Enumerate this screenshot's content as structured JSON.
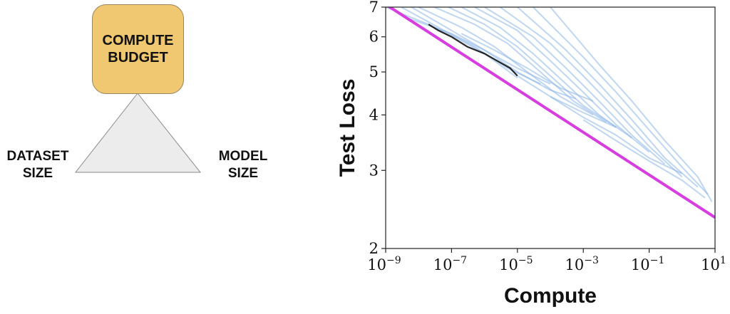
{
  "diagram": {
    "center_label": "COMPUTE\nBUDGET",
    "left_label": "DATASET\nSIZE",
    "right_label": "MODEL\nSIZE",
    "box_color": "#f0c871",
    "triangle_color": "#ececec"
  },
  "chart_data": {
    "type": "line",
    "title": "",
    "xlabel": "Compute",
    "ylabel": "Test Loss",
    "x_scale": "log",
    "y_scale": "log",
    "xlim": [
      1e-09,
      10
    ],
    "ylim": [
      2,
      7
    ],
    "x_ticks": [
      {
        "value": 1e-09,
        "base": "10",
        "exp": "−9"
      },
      {
        "value": 1e-07,
        "base": "10",
        "exp": "−7"
      },
      {
        "value": 1e-05,
        "base": "10",
        "exp": "−5"
      },
      {
        "value": 0.001,
        "base": "10",
        "exp": "−3"
      },
      {
        "value": 0.1,
        "base": "10",
        "exp": "−1"
      },
      {
        "value": 10,
        "base": "10",
        "exp": "1"
      }
    ],
    "y_ticks": [
      {
        "value": 2,
        "label": "2"
      },
      {
        "value": 3,
        "label": "3"
      },
      {
        "value": 4,
        "label": "4"
      },
      {
        "value": 5,
        "label": "5"
      },
      {
        "value": 6,
        "label": "6"
      },
      {
        "value": 7,
        "label": "7"
      }
    ],
    "grid": false,
    "legend": "none",
    "series": [
      {
        "role": "frontier-fit",
        "color": "#d63ee0",
        "x": [
          1e-09,
          10
        ],
        "y": [
          7.1,
          2.35
        ]
      },
      {
        "role": "best-run-envelope",
        "color": "#111111",
        "x": [
          2e-08,
          4e-08,
          1e-07,
          3e-07,
          1e-06,
          3e-06,
          6e-06,
          1e-05
        ],
        "y": [
          6.4,
          6.2,
          6.0,
          5.7,
          5.5,
          5.25,
          5.1,
          4.9
        ]
      },
      {
        "role": "training-runs",
        "color": "#8ab4e6",
        "lines": [
          {
            "x": [
              1e-09,
              2e-08,
              1e-07,
              1e-06,
              1e-05
            ],
            "y": [
              7.0,
              6.4,
              6.05,
              5.5,
              4.85
            ]
          },
          {
            "x": [
              3e-09,
              4e-08,
              5e-07,
              5e-06,
              5e-05
            ],
            "y": [
              7.0,
              6.3,
              5.7,
              5.1,
              4.7
            ]
          },
          {
            "x": [
              6e-09,
              1e-07,
              1e-06,
              1e-05,
              0.0001,
              0.0006
            ],
            "y": [
              7.0,
              6.2,
              5.6,
              5.0,
              4.55,
              4.35
            ]
          },
          {
            "x": [
              1e-08,
              2e-07,
              2e-06,
              2e-05,
              0.0002,
              0.002
            ],
            "y": [
              7.0,
              6.3,
              5.7,
              5.0,
              4.4,
              4.0
            ]
          },
          {
            "x": [
              3e-08,
              5e-07,
              5e-06,
              5e-05,
              0.0005,
              0.005
            ],
            "y": [
              7.0,
              6.4,
              5.8,
              5.0,
              4.3,
              3.85
            ]
          },
          {
            "x": [
              8e-08,
              1e-06,
              1e-05,
              0.0001,
              0.001,
              0.01
            ],
            "y": [
              7.0,
              6.4,
              5.7,
              4.9,
              4.2,
              3.75
            ]
          },
          {
            "x": [
              2e-07,
              3e-06,
              3e-05,
              0.0003,
              0.003,
              0.03
            ],
            "y": [
              7.0,
              6.3,
              5.5,
              4.7,
              4.0,
              3.55
            ]
          },
          {
            "x": [
              5e-07,
              1e-05,
              0.0001,
              0.001,
              0.01,
              0.1
            ],
            "y": [
              7.0,
              6.2,
              5.3,
              4.5,
              3.8,
              3.3
            ]
          },
          {
            "x": [
              1e-06,
              3e-05,
              0.0003,
              0.003,
              0.03,
              0.3
            ],
            "y": [
              7.0,
              6.0,
              5.1,
              4.3,
              3.6,
              3.1
            ]
          },
          {
            "x": [
              3e-06,
              0.0001,
              0.001,
              0.01,
              0.1,
              1
            ],
            "y": [
              7.0,
              5.8,
              4.9,
              4.1,
              3.4,
              2.9
            ]
          },
          {
            "x": [
              1e-05,
              0.0003,
              0.003,
              0.03,
              0.3,
              3
            ],
            "y": [
              7.0,
              5.6,
              4.7,
              3.9,
              3.2,
              2.75
            ]
          },
          {
            "x": [
              3e-05,
              0.001,
              0.01,
              0.1,
              1,
              6
            ],
            "y": [
              7.0,
              5.4,
              4.5,
              3.7,
              3.05,
              2.65
            ]
          },
          {
            "x": [
              0.0001,
              0.003,
              0.03,
              0.3,
              3,
              8
            ],
            "y": [
              7.0,
              5.2,
              4.3,
              3.5,
              2.9,
              2.55
            ]
          },
          {
            "x": [
              5e-09,
              1e-07,
              1e-06,
              1e-05,
              0.0001
            ],
            "y": [
              6.6,
              6.1,
              5.6,
              5.1,
              4.7
            ]
          },
          {
            "x": [
              2e-07,
              2e-06,
              2e-05,
              0.0002,
              0.002
            ],
            "y": [
              6.1,
              5.6,
              5.1,
              4.6,
              4.3
            ]
          },
          {
            "x": [
              1e-05,
              0.0001,
              0.001,
              0.01
            ],
            "y": [
              4.9,
              4.4,
              4.05,
              3.75
            ]
          },
          {
            "x": [
              0.0001,
              0.001,
              0.01,
              0.1,
              1
            ],
            "y": [
              4.4,
              3.95,
              3.6,
              3.2,
              2.95
            ]
          },
          {
            "x": [
              0.001,
              0.01,
              0.1,
              1,
              5
            ],
            "y": [
              3.9,
              3.5,
              3.15,
              2.85,
              2.6
            ]
          }
        ]
      }
    ]
  }
}
